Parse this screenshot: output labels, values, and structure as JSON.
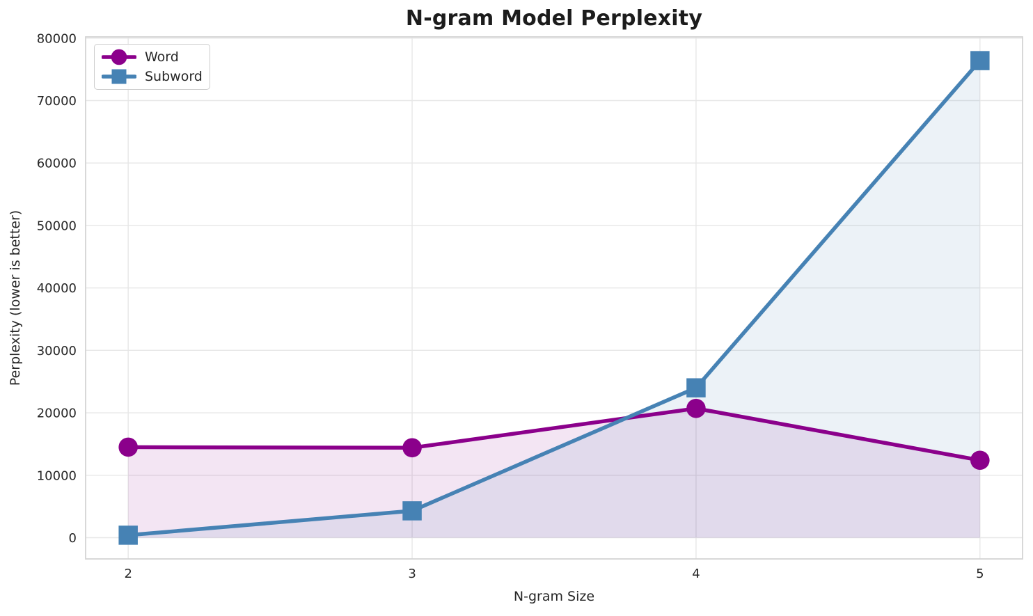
{
  "chart_data": {
    "type": "line",
    "title": "N-gram Model Perplexity",
    "xlabel": "N-gram Size",
    "ylabel": "Perplexity (lower is better)",
    "x": [
      2,
      3,
      4,
      5
    ],
    "series": [
      {
        "name": "Word",
        "marker": "circle",
        "color": "#8B008B",
        "values": [
          14500,
          14400,
          20700,
          12400
        ]
      },
      {
        "name": "Subword",
        "marker": "square",
        "color": "#4682B4",
        "values": [
          400,
          4300,
          24000,
          76400
        ]
      }
    ],
    "xticks": [
      2,
      3,
      4,
      5
    ],
    "yticks": [
      0,
      10000,
      20000,
      30000,
      40000,
      50000,
      60000,
      70000,
      80000
    ],
    "ylim": [
      0,
      80000
    ],
    "grid": true,
    "legend_position": "upper left",
    "fill_to_zero": true,
    "fill_alpha": 0.1,
    "colors": {
      "grid": "#e7e7e7",
      "spine": "#d4d4d4",
      "tick_text": "#262626",
      "title_text": "#1c1c1c"
    }
  }
}
